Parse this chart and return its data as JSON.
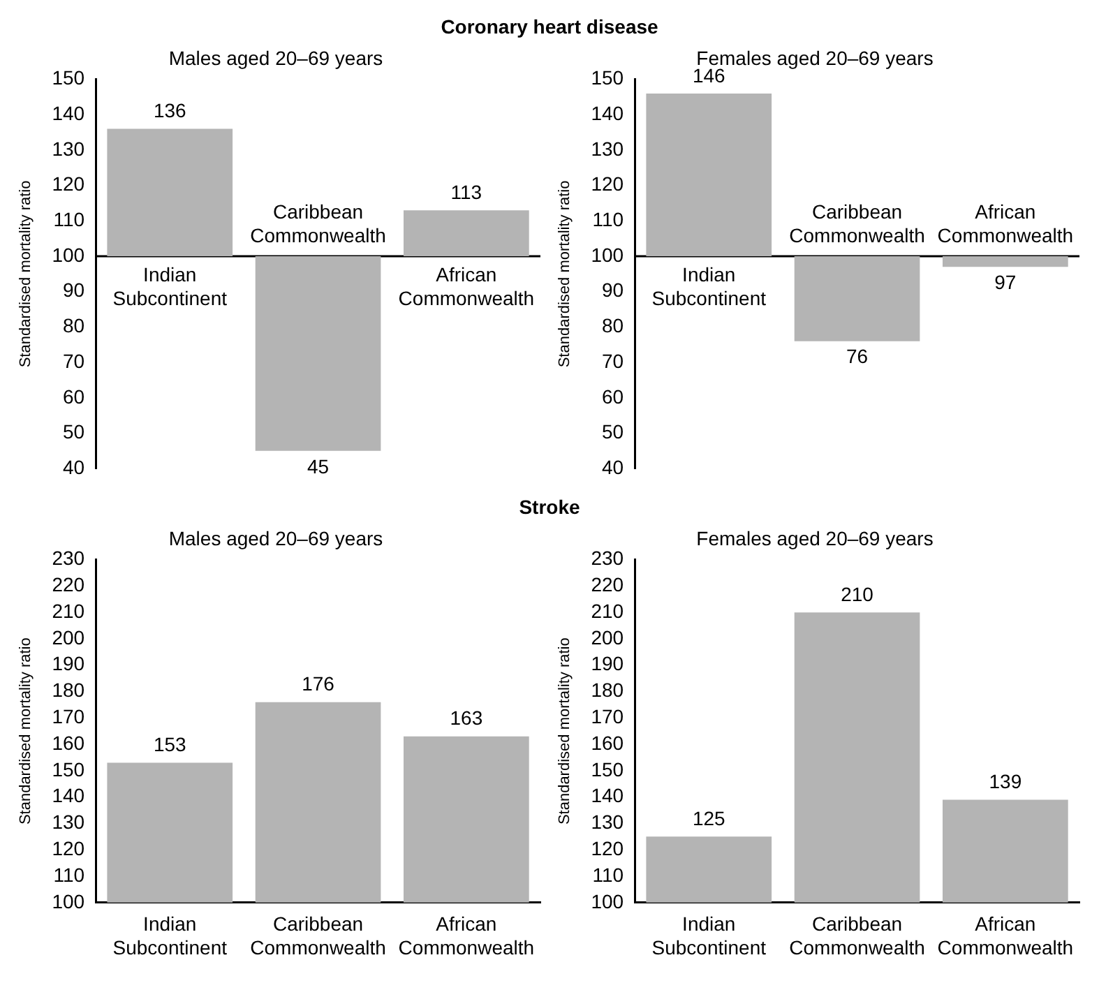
{
  "chart_data": [
    {
      "type": "bar",
      "annotations": [
        "Coronary heart disease"
      ],
      "title": "Males aged 20–69 years",
      "ylabel": "Standardised mortality ratio",
      "categories": [
        "Indian Subcontinent",
        "Caribbean Commonwealth",
        "African Commonwealth"
      ],
      "base": [
        100,
        100,
        100
      ],
      "values": [
        36,
        -55,
        13
      ],
      "value_labels": [
        "136",
        "45",
        "113"
      ],
      "color": "#b4b4b4",
      "ylim": [
        40,
        150
      ],
      "yticks": [
        40,
        50,
        60,
        70,
        80,
        90,
        100,
        110,
        120,
        130,
        140,
        150
      ],
      "legend": false
    },
    {
      "type": "bar",
      "title": "Females aged 20–69 years",
      "ylabel": "Standardised mortality ratio",
      "categories": [
        "Indian Subcontinent",
        "Caribbean Commonwealth",
        "African Commonwealth"
      ],
      "base": [
        100,
        100,
        100
      ],
      "values": [
        46,
        -24,
        -3
      ],
      "value_labels": [
        "146",
        "76",
        "97"
      ],
      "color": "#b4b4b4",
      "ylim": [
        40,
        150
      ],
      "yticks": [
        40,
        50,
        60,
        70,
        80,
        90,
        100,
        110,
        120,
        130,
        140,
        150
      ],
      "legend": false
    },
    {
      "type": "bar",
      "annotations": [
        "Stroke"
      ],
      "title": "Males aged 20–69 years",
      "ylabel": "Standardised mortality ratio",
      "categories": [
        "Indian Subcontinent",
        "Caribbean Commonwealth",
        "African Commonwealth"
      ],
      "values": [
        153,
        176,
        163
      ],
      "data_labels": true,
      "color": "#b4b4b4",
      "ylim": [
        100,
        230
      ],
      "yticks": [
        100,
        110,
        120,
        130,
        140,
        150,
        160,
        170,
        180,
        190,
        200,
        210,
        220,
        230
      ],
      "legend": false
    },
    {
      "type": "bar",
      "title": "Females aged 20–69 years",
      "ylabel": "Standardised mortality ratio",
      "categories": [
        "Indian Subcontinent",
        "Caribbean Commonwealth",
        "African Commonwealth"
      ],
      "values": [
        125,
        210,
        139
      ],
      "data_labels": true,
      "color": "#b4b4b4",
      "ylim": [
        100,
        230
      ],
      "yticks": [
        100,
        110,
        120,
        130,
        140,
        150,
        160,
        170,
        180,
        190,
        200,
        210,
        220,
        230
      ],
      "legend": false
    }
  ]
}
